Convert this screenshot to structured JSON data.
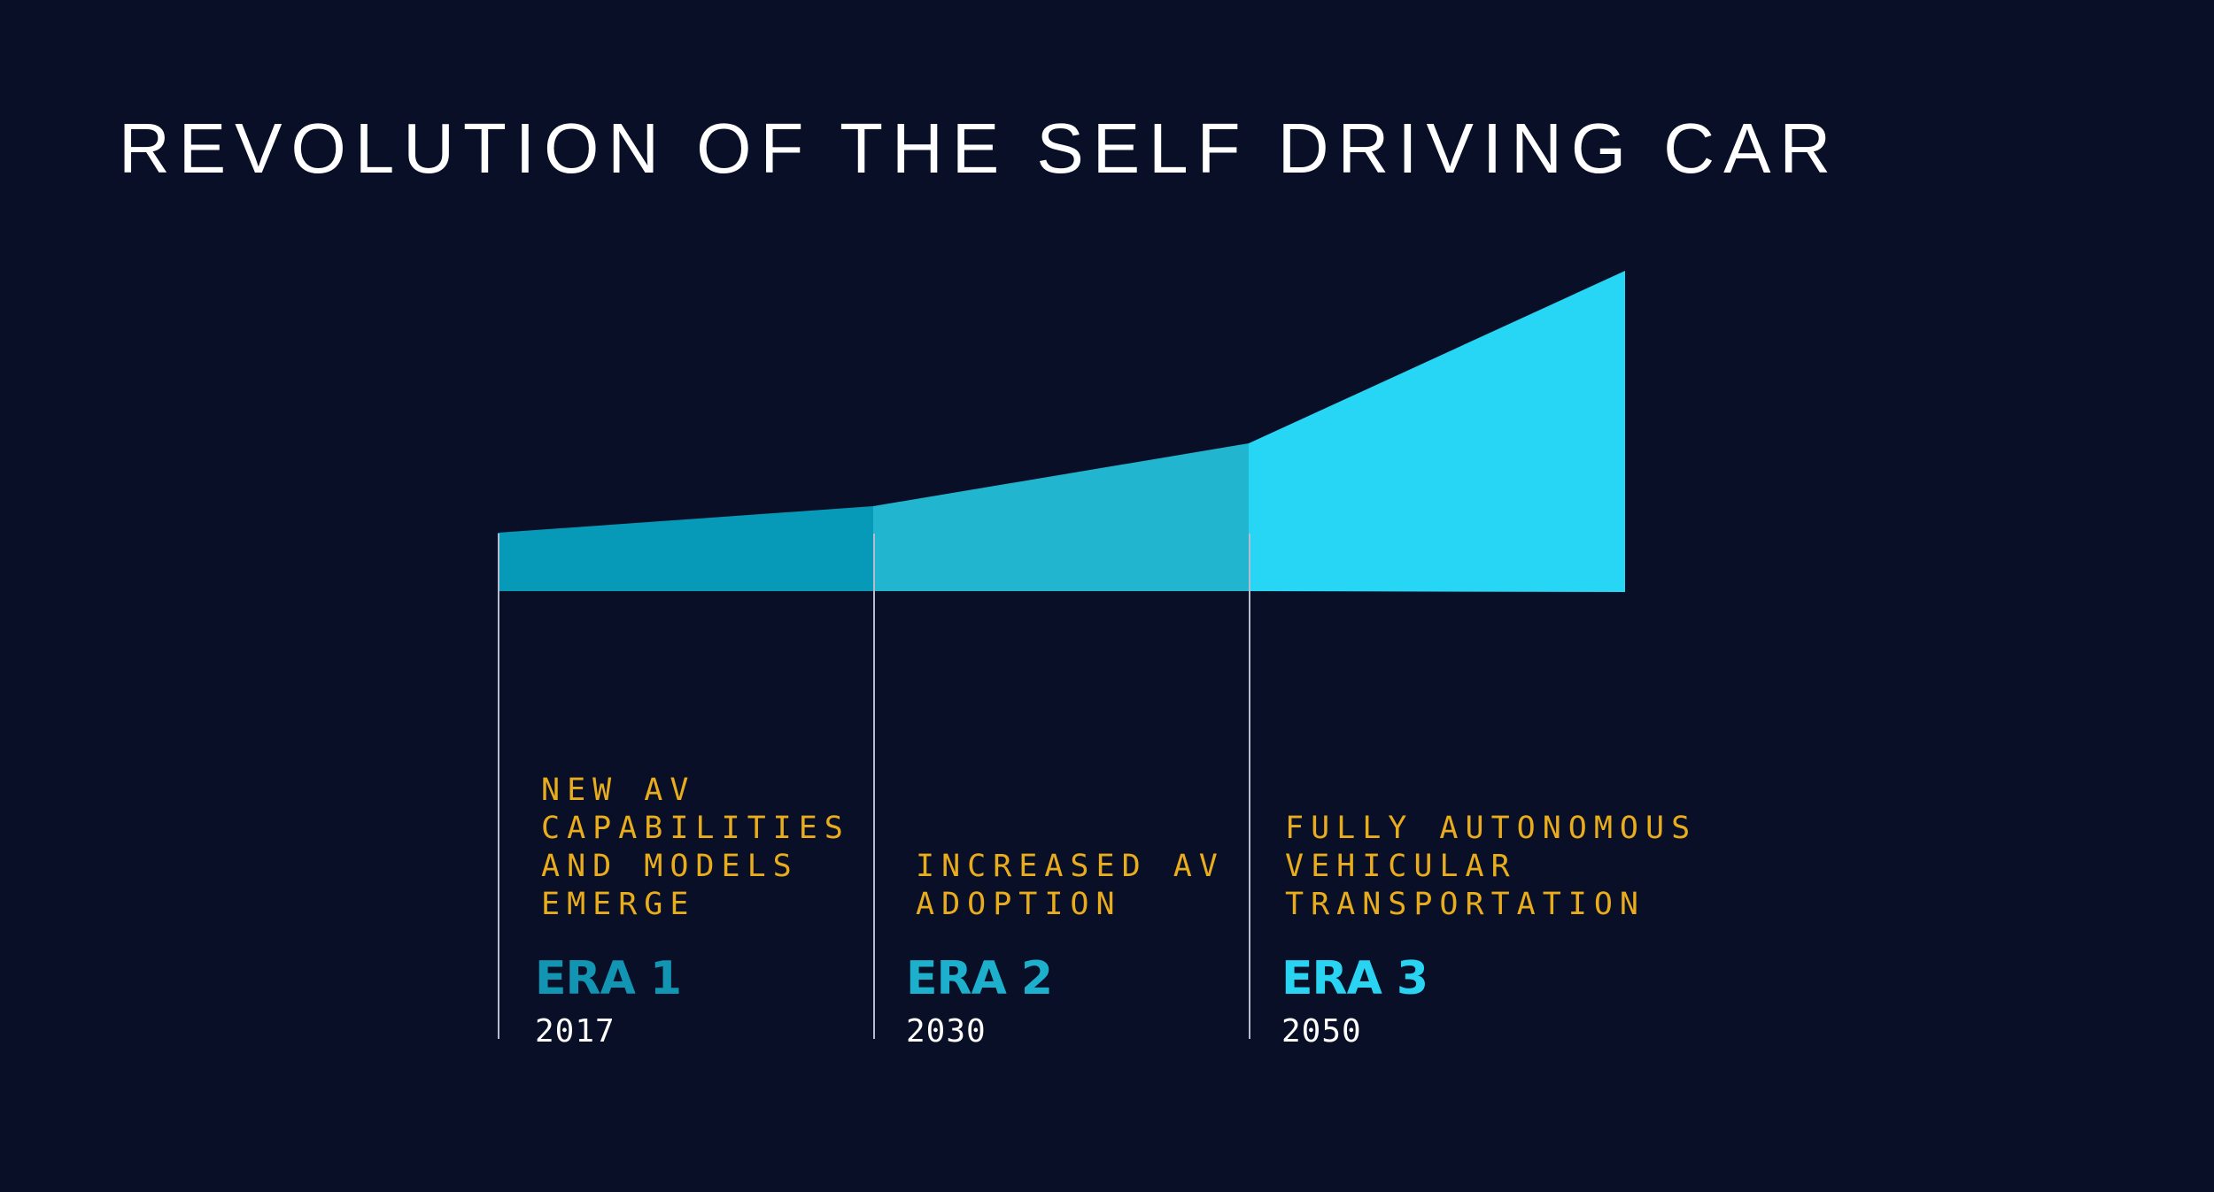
{
  "title": "REVOLUTION OF THE SELF DRIVING CAR",
  "colors": {
    "background": "#090f26",
    "title": "#ffffff",
    "description": "#e9ac1c",
    "year": "#ffffff",
    "divider": "#b6bccd"
  },
  "eras": [
    {
      "label": "ERA 1",
      "year": "2017",
      "description": "NEW AV\nCAPABILITIES\nAND MODELS\nEMERGE",
      "color": "#0799b8",
      "label_color": "#1195b3"
    },
    {
      "label": "ERA 2",
      "year": "2030",
      "description": "INCREASED AV\nADOPTION",
      "color": "#21b5cf",
      "label_color": "#1cb0cd"
    },
    {
      "label": "ERA 3",
      "year": "2050",
      "description": "FULLY AUTONOMOUS\nVEHICULAR\nTRANSPORTATION",
      "color": "#27d6f4",
      "label_color": "#29d4f3"
    }
  ]
}
